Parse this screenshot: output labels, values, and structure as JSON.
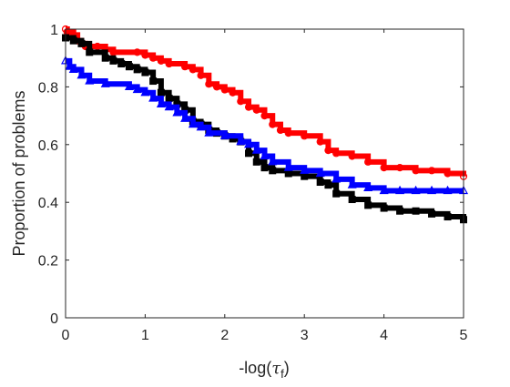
{
  "chart_data": {
    "type": "line",
    "title": "",
    "xlabel": "-log(",
    "xlabel_symbol": "τ",
    "xlabel_subscript": "f",
    "xlabel_close": ")",
    "ylabel": "Proportion of problems",
    "xlim": [
      0,
      5
    ],
    "ylim": [
      0,
      1
    ],
    "xticks": [
      0,
      1,
      2,
      3,
      4,
      5
    ],
    "yticks": [
      0,
      0.2,
      0.4,
      0.6,
      0.8,
      1
    ],
    "xtick_labels": [
      "0",
      "1",
      "2",
      "3",
      "4",
      "5"
    ],
    "ytick_labels": [
      "0",
      "0.2",
      "0.4",
      "0.6",
      "0.8",
      "1"
    ],
    "grid": false,
    "legend": false,
    "series": [
      {
        "color": "#ff0000",
        "marker": "circle",
        "points": [
          [
            0,
            1.0
          ],
          [
            0.02,
            0.99
          ],
          [
            0.1,
            0.98
          ],
          [
            0.15,
            0.96
          ],
          [
            0.2,
            0.95
          ],
          [
            0.25,
            0.94
          ],
          [
            0.4,
            0.94
          ],
          [
            0.5,
            0.93
          ],
          [
            0.6,
            0.92
          ],
          [
            0.9,
            0.92
          ],
          [
            1.0,
            0.91
          ],
          [
            1.1,
            0.9
          ],
          [
            1.2,
            0.89
          ],
          [
            1.3,
            0.88
          ],
          [
            1.5,
            0.87
          ],
          [
            1.6,
            0.86
          ],
          [
            1.7,
            0.84
          ],
          [
            1.8,
            0.81
          ],
          [
            1.9,
            0.8
          ],
          [
            2.0,
            0.79
          ],
          [
            2.1,
            0.78
          ],
          [
            2.2,
            0.75
          ],
          [
            2.3,
            0.73
          ],
          [
            2.4,
            0.72
          ],
          [
            2.5,
            0.7
          ],
          [
            2.6,
            0.67
          ],
          [
            2.7,
            0.65
          ],
          [
            2.8,
            0.64
          ],
          [
            3.0,
            0.63
          ],
          [
            3.2,
            0.61
          ],
          [
            3.3,
            0.58
          ],
          [
            3.4,
            0.57
          ],
          [
            3.6,
            0.56
          ],
          [
            3.8,
            0.54
          ],
          [
            4.0,
            0.52
          ],
          [
            4.2,
            0.52
          ],
          [
            4.4,
            0.51
          ],
          [
            4.6,
            0.51
          ],
          [
            4.8,
            0.5
          ],
          [
            5.0,
            0.49
          ]
        ]
      },
      {
        "color": "#000000",
        "marker": "square",
        "points": [
          [
            0,
            0.97
          ],
          [
            0.1,
            0.96
          ],
          [
            0.2,
            0.95
          ],
          [
            0.3,
            0.92
          ],
          [
            0.5,
            0.9
          ],
          [
            0.6,
            0.89
          ],
          [
            0.7,
            0.88
          ],
          [
            0.8,
            0.87
          ],
          [
            0.9,
            0.86
          ],
          [
            1.0,
            0.85
          ],
          [
            1.1,
            0.82
          ],
          [
            1.2,
            0.78
          ],
          [
            1.3,
            0.76
          ],
          [
            1.4,
            0.74
          ],
          [
            1.5,
            0.72
          ],
          [
            1.6,
            0.68
          ],
          [
            1.7,
            0.67
          ],
          [
            1.8,
            0.65
          ],
          [
            1.9,
            0.64
          ],
          [
            2.0,
            0.63
          ],
          [
            2.1,
            0.62
          ],
          [
            2.2,
            0.61
          ],
          [
            2.3,
            0.57
          ],
          [
            2.4,
            0.54
          ],
          [
            2.5,
            0.52
          ],
          [
            2.6,
            0.51
          ],
          [
            2.8,
            0.5
          ],
          [
            3.0,
            0.49
          ],
          [
            3.2,
            0.47
          ],
          [
            3.3,
            0.46
          ],
          [
            3.4,
            0.43
          ],
          [
            3.6,
            0.41
          ],
          [
            3.8,
            0.39
          ],
          [
            4.0,
            0.38
          ],
          [
            4.2,
            0.37
          ],
          [
            4.4,
            0.37
          ],
          [
            4.6,
            0.36
          ],
          [
            4.8,
            0.35
          ],
          [
            5.0,
            0.34
          ]
        ]
      },
      {
        "color": "#0000ff",
        "marker": "triangle",
        "points": [
          [
            0,
            0.89
          ],
          [
            0.05,
            0.87
          ],
          [
            0.1,
            0.86
          ],
          [
            0.2,
            0.84
          ],
          [
            0.3,
            0.82
          ],
          [
            0.5,
            0.81
          ],
          [
            0.8,
            0.8
          ],
          [
            0.9,
            0.79
          ],
          [
            1.0,
            0.78
          ],
          [
            1.1,
            0.76
          ],
          [
            1.2,
            0.74
          ],
          [
            1.3,
            0.73
          ],
          [
            1.4,
            0.71
          ],
          [
            1.5,
            0.69
          ],
          [
            1.6,
            0.67
          ],
          [
            1.7,
            0.66
          ],
          [
            1.8,
            0.64
          ],
          [
            2.0,
            0.63
          ],
          [
            2.2,
            0.61
          ],
          [
            2.3,
            0.6
          ],
          [
            2.4,
            0.58
          ],
          [
            2.5,
            0.56
          ],
          [
            2.6,
            0.54
          ],
          [
            2.8,
            0.52
          ],
          [
            3.0,
            0.51
          ],
          [
            3.2,
            0.5
          ],
          [
            3.4,
            0.48
          ],
          [
            3.6,
            0.46
          ],
          [
            3.8,
            0.45
          ],
          [
            4.0,
            0.44
          ],
          [
            4.2,
            0.44
          ],
          [
            4.4,
            0.44
          ],
          [
            4.6,
            0.44
          ],
          [
            4.8,
            0.44
          ],
          [
            5.0,
            0.44
          ]
        ]
      }
    ]
  }
}
